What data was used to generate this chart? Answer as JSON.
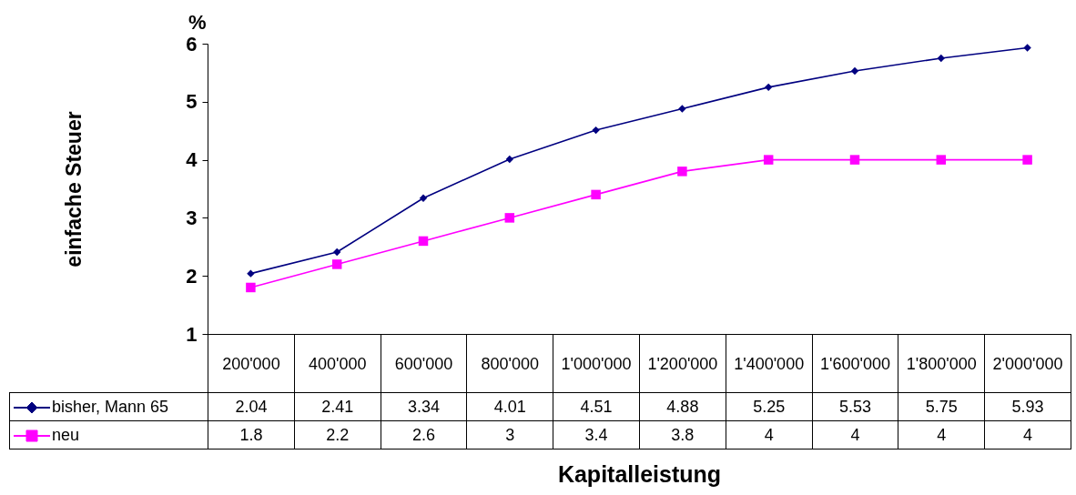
{
  "chart_data": {
    "type": "line",
    "categories": [
      "200'000",
      "400'000",
      "600'000",
      "800'000",
      "1'000'000",
      "1'200'000",
      "1'400'000",
      "1'600'000",
      "1'800'000",
      "2'000'000"
    ],
    "series": [
      {
        "name": "bisher, Mann 65",
        "color": "#000080",
        "marker": "diamond",
        "values": [
          2.04,
          2.41,
          3.34,
          4.01,
          4.51,
          4.88,
          5.25,
          5.53,
          5.75,
          5.93
        ]
      },
      {
        "name": "neu",
        "color": "#ff00ff",
        "marker": "square",
        "values": [
          1.8,
          2.2,
          2.6,
          3,
          3.4,
          3.8,
          4,
          4,
          4,
          4
        ]
      }
    ],
    "ylabel": "einfache Steuer",
    "xlabel": "Kapitalleistung",
    "annotations": [
      "%"
    ],
    "ylim": [
      1,
      6
    ],
    "yticks": [
      1,
      2,
      3,
      4,
      5,
      6
    ],
    "grid": false,
    "legend": "bottom",
    "data_labels": true
  }
}
